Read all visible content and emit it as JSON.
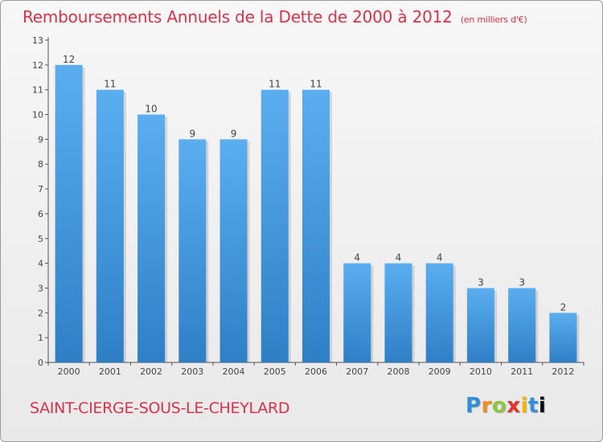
{
  "header": {
    "title": "Remboursements Annuels de la Dette de 2000 à 2012",
    "subtitle": "(en milliers d'€)"
  },
  "footer": {
    "place_name": "SAINT-CIERGE-SOUS-LE-CHEYLARD",
    "logo_text": "Proxiti"
  },
  "colors": {
    "title": "#d9324a",
    "bar_top": "#5aaef0",
    "bar_bottom": "#2f7fc6",
    "axis": "#555555"
  },
  "chart_data": {
    "type": "bar",
    "title": "Remboursements Annuels de la Dette de 2000 à 2012",
    "xlabel": "",
    "ylabel": "",
    "ylim": [
      0,
      13
    ],
    "yticks": [
      0,
      1,
      2,
      3,
      4,
      5,
      6,
      7,
      8,
      9,
      10,
      11,
      12,
      13
    ],
    "categories": [
      "2000",
      "2001",
      "2002",
      "2003",
      "2004",
      "2005",
      "2006",
      "2007",
      "2008",
      "2009",
      "2010",
      "2011",
      "2012"
    ],
    "values": [
      12,
      11,
      10,
      9,
      9,
      11,
      11,
      4,
      4,
      4,
      3,
      3,
      2
    ],
    "data_labels": [
      "12",
      "11",
      "10",
      "9",
      "9",
      "11",
      "11",
      "4",
      "4",
      "4",
      "3",
      "3",
      "2"
    ],
    "grid": false
  }
}
